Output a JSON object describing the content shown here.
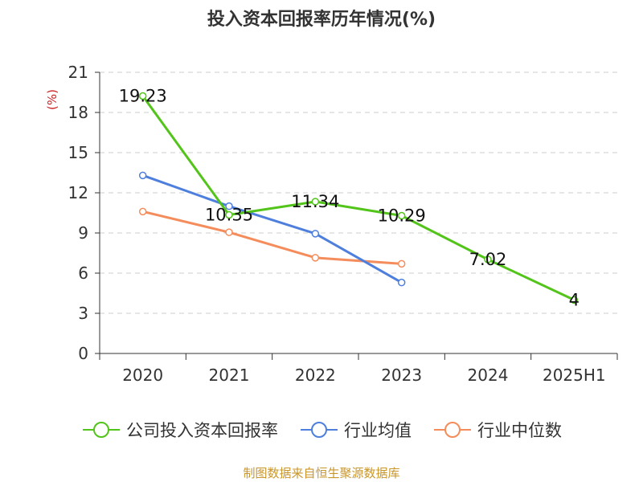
{
  "title": "投入资本回报率历年情况(%)",
  "unit_label": "(%)",
  "source": "制图数据来自恒生聚源数据库",
  "colors": {
    "company": "#52c41a",
    "industry_avg": "#4e7fdd",
    "industry_median": "#f58c5b",
    "grid": "#cccccc",
    "axis": "#333333"
  },
  "chart_data": {
    "type": "line",
    "title": "投入资本回报率历年情况(%)",
    "categories": [
      "2020",
      "2021",
      "2022",
      "2023",
      "2024",
      "2025H1"
    ],
    "ylim": [
      0,
      21
    ],
    "yticks": [
      0,
      3,
      6,
      9,
      12,
      15,
      18,
      21
    ],
    "grid": true,
    "legend_position": "bottom",
    "series": [
      {
        "name": "公司投入资本回报率",
        "values": [
          19.23,
          10.35,
          11.34,
          10.29,
          7.02,
          4
        ],
        "labels": [
          "19.23",
          "10.35",
          "11.34",
          "10.29",
          "7.02",
          "4"
        ]
      },
      {
        "name": "行业均值",
        "values": [
          13.3,
          11.0,
          8.95,
          5.3,
          null,
          null
        ]
      },
      {
        "name": "行业中位数",
        "values": [
          10.6,
          9.05,
          7.15,
          6.7,
          null,
          null
        ]
      }
    ]
  }
}
